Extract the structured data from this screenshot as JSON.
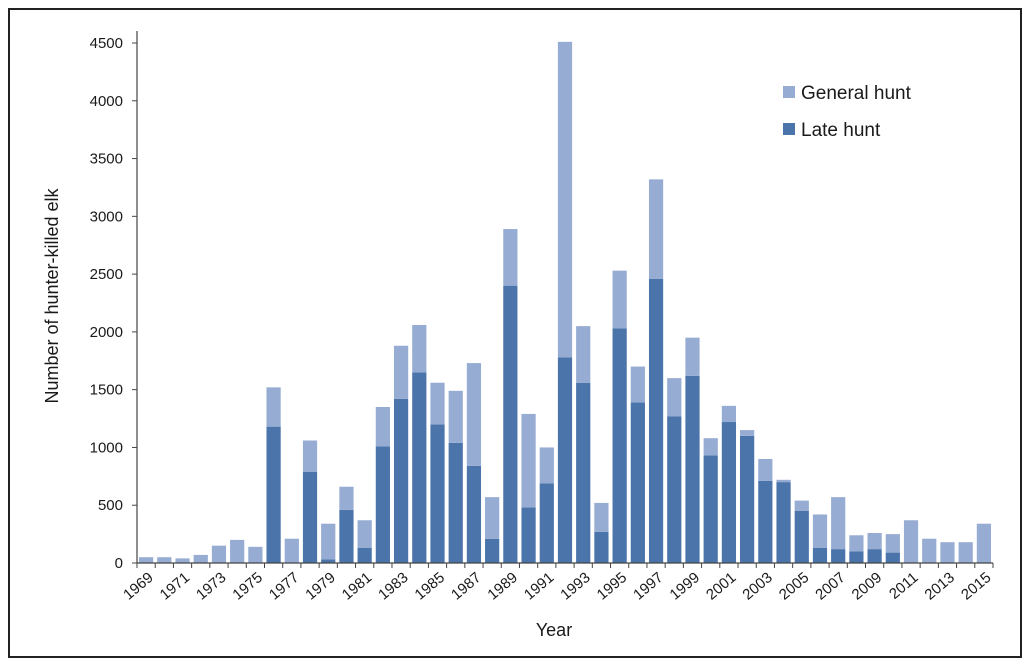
{
  "chart_data": {
    "type": "bar",
    "stacked": true,
    "xlabel": "Year",
    "ylabel": "Number of hunter-killed elk",
    "ylim": [
      0,
      4500
    ],
    "yticks": [
      0,
      500,
      1000,
      1500,
      2000,
      2500,
      3000,
      3500,
      4000,
      4500
    ],
    "legend_position": "top-right",
    "grid": false,
    "categories": [
      "1969",
      "1970",
      "1971",
      "1972",
      "1973",
      "1974",
      "1975",
      "1976",
      "1977",
      "1978",
      "1979",
      "1980",
      "1981",
      "1982",
      "1983",
      "1984",
      "1985",
      "1986",
      "1987",
      "1988",
      "1989",
      "1990",
      "1991",
      "1992",
      "1993",
      "1994",
      "1995",
      "1996",
      "1997",
      "1998",
      "1999",
      "2000",
      "2001",
      "2002",
      "2003",
      "2004",
      "2005",
      "2006",
      "2007",
      "2008",
      "2009",
      "2010",
      "2011",
      "2012",
      "2013",
      "2014",
      "2015"
    ],
    "tick_labels": [
      "1969",
      "1971",
      "1973",
      "1975",
      "1977",
      "1979",
      "1981",
      "1983",
      "1985",
      "1987",
      "1989",
      "1991",
      "1993",
      "1995",
      "1997",
      "1999",
      "2001",
      "2003",
      "2005",
      "2007",
      "2009",
      "2011",
      "2013",
      "2015"
    ],
    "series": [
      {
        "name": "Late hunt",
        "color": "#4a74aa",
        "values": [
          0,
          0,
          0,
          0,
          0,
          0,
          0,
          1180,
          0,
          790,
          30,
          460,
          130,
          1010,
          1420,
          1650,
          1200,
          1040,
          840,
          210,
          2400,
          480,
          690,
          1780,
          1560,
          270,
          2030,
          1390,
          2460,
          1270,
          1620,
          930,
          1220,
          1100,
          710,
          700,
          450,
          130,
          120,
          100,
          120,
          90,
          0,
          0,
          0,
          0,
          0
        ]
      },
      {
        "name": "General hunt",
        "color": "#96acd2",
        "values": [
          50,
          50,
          40,
          70,
          150,
          200,
          140,
          340,
          210,
          270,
          310,
          200,
          240,
          340,
          460,
          410,
          360,
          450,
          890,
          360,
          490,
          810,
          310,
          2730,
          490,
          250,
          500,
          310,
          860,
          330,
          330,
          150,
          140,
          50,
          190,
          20,
          90,
          290,
          450,
          140,
          140,
          160,
          370,
          210,
          180,
          180,
          340
        ]
      }
    ]
  }
}
